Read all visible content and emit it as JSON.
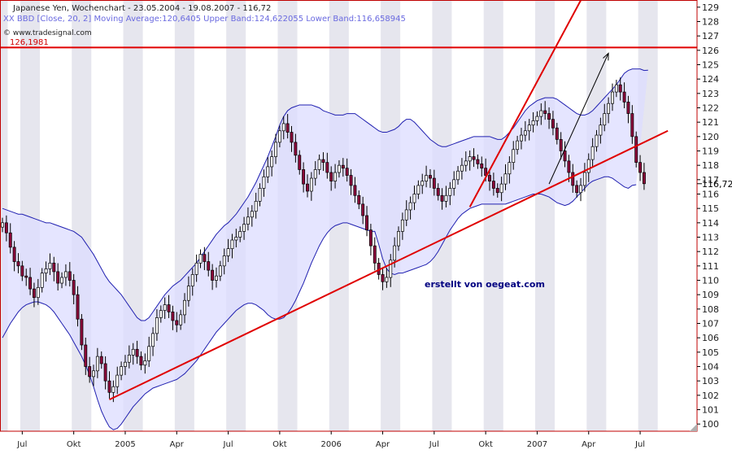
{
  "header": {
    "title": "Japanese Yen, Wochenchart - 23.05.2004 - 19.08.2007 - 116,72",
    "indicator": "XX BBD [Close, 20, 2] Moving Average:120,6405 Upper Band:124,622055 Lower Band:116,658945",
    "source": "© www.tradesignal.com",
    "level_label": "126,1981"
  },
  "annotation": "erstellt von oegeat.com",
  "current_price_label": "116,72",
  "colors": {
    "candle_up": "#ffffff",
    "candle_down": "#8b0a3a",
    "band_line": "#2020b0",
    "band_fill": "#dcdcff",
    "trend_line": "#e00000",
    "arrow": "#000000",
    "stripe": "#e6e6ee"
  },
  "chart_data": {
    "type": "candlestick",
    "title": "Japanese Yen, Wochenchart - 23.05.2004 - 19.08.2007 - 116,72",
    "y_axis": {
      "position": "right",
      "ylim": [
        99.5,
        129.5
      ],
      "ticks": [
        100,
        101,
        102,
        103,
        104,
        105,
        106,
        107,
        108,
        109,
        110,
        111,
        112,
        113,
        114,
        115,
        116,
        117,
        118,
        119,
        120,
        121,
        122,
        123,
        124,
        125,
        126,
        127,
        128,
        129
      ]
    },
    "x_axis": {
      "tick_labels": [
        "Jul",
        "Okt",
        "2005",
        "Apr",
        "Jul",
        "Okt",
        "2006",
        "Apr",
        "Jul",
        "Okt",
        "2007",
        "Apr",
        "Jul"
      ],
      "tick_weeks": [
        5,
        18,
        31,
        44,
        57,
        70,
        83,
        96,
        109,
        122,
        135,
        148,
        161
      ]
    },
    "horizontal_level": 126.1981,
    "series": [
      {
        "name": "Close (weekly, approx.)",
        "start_week": 0,
        "values": [
          114.0,
          113.3,
          112.3,
          111.3,
          111.0,
          110.3,
          110.2,
          109.4,
          108.8,
          109.5,
          110.5,
          110.8,
          111.2,
          110.6,
          109.8,
          110.2,
          110.6,
          110.0,
          109.0,
          107.3,
          105.5,
          104.0,
          103.3,
          103.7,
          104.7,
          104.2,
          103.0,
          102.2,
          102.6,
          103.4,
          104.0,
          104.3,
          104.8,
          105.2,
          104.7,
          104.1,
          104.4,
          105.4,
          106.3,
          107.4,
          107.9,
          108.3,
          107.8,
          107.2,
          106.9,
          107.6,
          108.6,
          109.6,
          110.4,
          111.2,
          111.8,
          111.3,
          110.7,
          110.0,
          110.3,
          111.0,
          111.7,
          112.2,
          112.8,
          113.0,
          113.4,
          113.9,
          114.4,
          114.8,
          115.5,
          116.4,
          117.2,
          117.9,
          118.6,
          119.6,
          120.4,
          120.9,
          120.3,
          119.6,
          118.7,
          117.7,
          116.7,
          116.2,
          117.1,
          117.7,
          118.4,
          118.2,
          117.5,
          116.9,
          117.5,
          118.0,
          117.8,
          117.3,
          116.6,
          115.9,
          115.3,
          114.5,
          113.5,
          112.4,
          111.2,
          110.4,
          109.9,
          110.2,
          111.4,
          112.4,
          113.4,
          114.2,
          114.9,
          115.4,
          116.0,
          116.6,
          116.9,
          117.3,
          117.1,
          116.4,
          115.9,
          115.5,
          115.9,
          116.4,
          117.0,
          117.6,
          118.0,
          118.3,
          118.6,
          118.4,
          118.1,
          117.8,
          117.3,
          116.9,
          116.4,
          116.1,
          116.7,
          117.4,
          118.2,
          119.1,
          119.7,
          120.1,
          120.4,
          120.8,
          121.1,
          121.4,
          121.8,
          121.6,
          121.2,
          120.6,
          119.8,
          119.0,
          118.3,
          117.5,
          116.6,
          116.1,
          116.6,
          117.5,
          118.4,
          119.3,
          120.1,
          120.8,
          121.6,
          122.3,
          123.1,
          123.6,
          123.1,
          122.4,
          121.6,
          120.0,
          118.2,
          117.5,
          116.72
        ]
      },
      {
        "name": "Upper Band (approx.)",
        "start_week": 0,
        "values": [
          115.0,
          114.9,
          114.8,
          114.7,
          114.6,
          114.6,
          114.5,
          114.4,
          114.3,
          114.2,
          114.1,
          114.0,
          114.0,
          113.9,
          113.8,
          113.7,
          113.6,
          113.5,
          113.4,
          113.2,
          113.0,
          112.6,
          112.2,
          111.8,
          111.3,
          110.8,
          110.3,
          109.9,
          109.6,
          109.3,
          109.0,
          108.6,
          108.2,
          107.8,
          107.4,
          107.2,
          107.2,
          107.4,
          107.8,
          108.2,
          108.6,
          109.0,
          109.3,
          109.6,
          109.8,
          110.0,
          110.3,
          110.6,
          110.9,
          111.2,
          111.6,
          112.0,
          112.4,
          112.8,
          113.2,
          113.5,
          113.8,
          114.0,
          114.3,
          114.6,
          115.0,
          115.4,
          115.8,
          116.3,
          116.8,
          117.4,
          118.0,
          118.6,
          119.3,
          120.0,
          120.8,
          121.4,
          121.8,
          122.0,
          122.1,
          122.2,
          122.2,
          122.2,
          122.2,
          122.1,
          122.0,
          121.8,
          121.7,
          121.6,
          121.5,
          121.5,
          121.5,
          121.6,
          121.6,
          121.6,
          121.4,
          121.2,
          121.0,
          120.8,
          120.6,
          120.4,
          120.3,
          120.3,
          120.4,
          120.5,
          120.7,
          121.0,
          121.2,
          121.2,
          121.0,
          120.7,
          120.4,
          120.1,
          119.8,
          119.6,
          119.4,
          119.3,
          119.3,
          119.4,
          119.5,
          119.6,
          119.7,
          119.8,
          119.9,
          120.0,
          120.0,
          120.0,
          120.0,
          120.0,
          119.9,
          119.8,
          119.8,
          120.0,
          120.3,
          120.6,
          121.0,
          121.4,
          121.8,
          122.1,
          122.3,
          122.5,
          122.6,
          122.7,
          122.7,
          122.7,
          122.6,
          122.4,
          122.2,
          122.0,
          121.8,
          121.6,
          121.5,
          121.5,
          121.6,
          121.8,
          122.1,
          122.4,
          122.7,
          123.0,
          123.3,
          123.6,
          124.0,
          124.4,
          124.6,
          124.7,
          124.7,
          124.7,
          124.6,
          124.62
        ]
      },
      {
        "name": "Lower Band (approx.)",
        "start_week": 0,
        "values": [
          106.0,
          106.5,
          107.0,
          107.4,
          107.8,
          108.1,
          108.3,
          108.4,
          108.5,
          108.5,
          108.4,
          108.3,
          108.1,
          107.8,
          107.4,
          107.0,
          106.6,
          106.2,
          105.7,
          105.2,
          104.7,
          104.1,
          103.4,
          102.6,
          101.7,
          100.9,
          100.3,
          99.8,
          99.6,
          99.7,
          100.0,
          100.4,
          100.8,
          101.2,
          101.5,
          101.8,
          102.1,
          102.3,
          102.5,
          102.6,
          102.7,
          102.8,
          102.9,
          103.0,
          103.1,
          103.3,
          103.5,
          103.8,
          104.1,
          104.4,
          104.8,
          105.2,
          105.6,
          106.0,
          106.4,
          106.7,
          107.0,
          107.3,
          107.6,
          107.9,
          108.1,
          108.3,
          108.4,
          108.4,
          108.3,
          108.1,
          107.9,
          107.6,
          107.4,
          107.3,
          107.3,
          107.4,
          107.7,
          108.1,
          108.6,
          109.2,
          109.8,
          110.5,
          111.2,
          111.8,
          112.4,
          112.9,
          113.3,
          113.6,
          113.8,
          113.9,
          114.0,
          114.0,
          113.9,
          113.8,
          113.7,
          113.6,
          113.5,
          113.4,
          113.4,
          112.5,
          111.5,
          110.8,
          110.5,
          110.4,
          110.5,
          110.5,
          110.6,
          110.7,
          110.8,
          110.9,
          111.0,
          111.1,
          111.3,
          111.6,
          112.0,
          112.5,
          113.0,
          113.5,
          113.9,
          114.3,
          114.6,
          114.8,
          115.0,
          115.1,
          115.2,
          115.3,
          115.3,
          115.3,
          115.3,
          115.3,
          115.3,
          115.3,
          115.4,
          115.5,
          115.6,
          115.7,
          115.8,
          115.9,
          116.0,
          116.0,
          116.0,
          115.9,
          115.8,
          115.6,
          115.4,
          115.3,
          115.2,
          115.3,
          115.5,
          115.8,
          116.1,
          116.4,
          116.7,
          116.9,
          117.0,
          117.1,
          117.2,
          117.2,
          117.1,
          116.9,
          116.7,
          116.5,
          116.4,
          116.6,
          116.65
        ]
      }
    ],
    "trendlines": [
      {
        "from": [
          27,
          101.7
        ],
        "to": [
          168,
          120.4
        ]
      },
      {
        "from": [
          118,
          115.1
        ],
        "to": [
          148,
          130.5
        ]
      }
    ],
    "arrow": {
      "from": [
        138,
        116.7
      ],
      "to": [
        153,
        125.8
      ]
    },
    "stripe_months": [
      1,
      2,
      3,
      7,
      8,
      9
    ]
  }
}
